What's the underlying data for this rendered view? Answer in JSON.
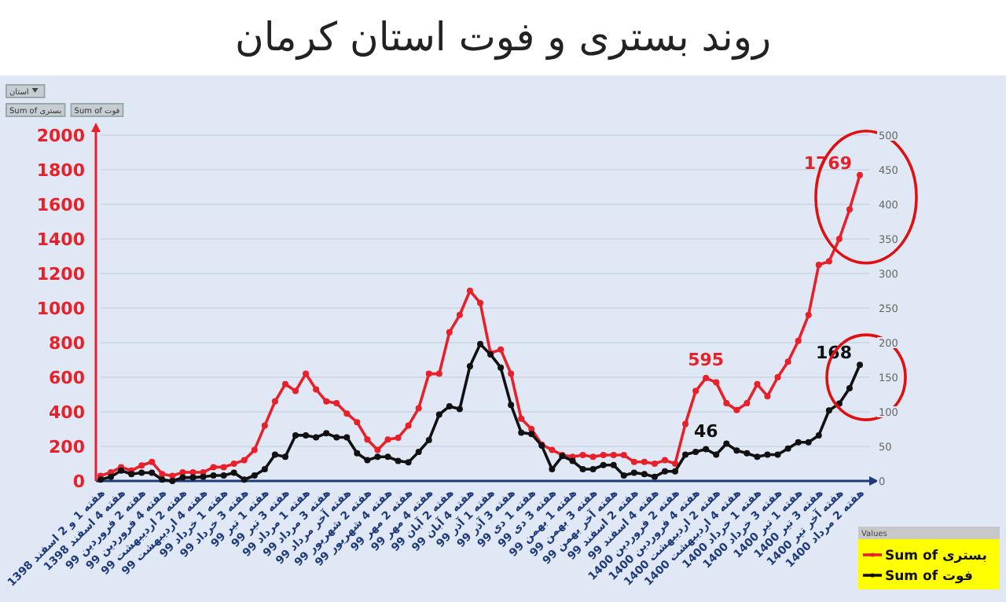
{
  "chart_data": {
    "type": "line",
    "title": "روند بستری و فوت استان کرمان",
    "categories": [
      "هفته 1 و 2 اسفند 1398",
      null,
      "هفته 4 اسفند 1398",
      null,
      "هفته 2 فروردین 99",
      null,
      "هفته 4 فروردین 99",
      null,
      "هفته 2 اردیبهشت 99",
      null,
      "هفته 4 اردیبهشت 99",
      null,
      "هفته 1 خرداد 99",
      null,
      "هفته 3 خرداد 99",
      null,
      "هفته 1 تیر 99",
      null,
      "هفته 3 تیر 99",
      null,
      "هفته 1 مرداد 99",
      null,
      "هفته 3 مرداد 99",
      null,
      "هفته آخر مرداد 99",
      null,
      "هفته 2 شهریور 99",
      null,
      "هفته 4 شهریور 99",
      null,
      "هفته 2 مهر 99",
      null,
      "هفته 4 مهر 99",
      null,
      "هفته 2 آبان 99",
      null,
      "هفته 4 آبان 99",
      null,
      "هفته 1 آذر 99",
      null,
      "هفته 3 آذر 99",
      null,
      "هفته 1 دی 99",
      null,
      "هفته 3 دی 99",
      null,
      "هفته 1 بهمن 99",
      null,
      "هفته 3 بهمن 99",
      null,
      "هفته آخر بهمن 99",
      null,
      "هفته 2 اسفند 99",
      null,
      "هفته 4 اسفند 99",
      null,
      "هفته 2 فروردین 1400",
      null,
      "هفته 4 فروردین 1400",
      null,
      "هفته 2 اردیبهشت 1400",
      null,
      "هفته 4 اردیبهشت 1400",
      null,
      "هفته 1 خرداد 1400",
      null,
      "هفته 3 خرداد 1400",
      null,
      "هفته 1 تیر 1400",
      null,
      "هفته 3 تیر 1400",
      null,
      "هفته آخر تیر 1400",
      null,
      "هفته 2 مرداد 1400"
    ],
    "series": [
      {
        "name": "Sum of بستری",
        "color": "#e8202a",
        "axis": "y",
        "values": [
          30,
          50,
          80,
          60,
          90,
          110,
          40,
          30,
          50,
          50,
          50,
          80,
          80,
          100,
          120,
          180,
          320,
          460,
          560,
          520,
          620,
          530,
          460,
          450,
          390,
          340,
          240,
          180,
          240,
          250,
          320,
          420,
          620,
          620,
          860,
          960,
          1100,
          1030,
          740,
          760,
          620,
          360,
          300,
          210,
          180,
          150,
          140,
          150,
          140,
          150,
          150,
          150,
          110,
          110,
          100,
          120,
          100,
          330,
          520,
          595,
          570,
          450,
          410,
          450,
          560,
          490,
          600,
          690,
          810,
          960,
          1250,
          1270,
          1400,
          1570,
          1769
        ],
        "value_labels": [
          null,
          null,
          null,
          null,
          null,
          null,
          null,
          null,
          null,
          null,
          null,
          null,
          null,
          null,
          null,
          null,
          null,
          null,
          null,
          null,
          null,
          null,
          null,
          null,
          null,
          null,
          null,
          null,
          null,
          null,
          null,
          null,
          null,
          null,
          null,
          null,
          null,
          null,
          null,
          null,
          null,
          null,
          null,
          null,
          null,
          null,
          null,
          null,
          null,
          null,
          null,
          null,
          null,
          null,
          null,
          null,
          null,
          null,
          null,
          "595",
          null,
          null,
          null,
          null,
          null,
          null,
          null,
          null,
          null,
          null,
          null,
          null,
          null,
          null,
          "1769"
        ]
      },
      {
        "name": "Sum of فوت",
        "color": "#111111",
        "axis": "y2",
        "values": [
          2,
          6,
          15,
          10,
          12,
          12,
          2,
          0,
          5,
          5,
          6,
          8,
          8,
          12,
          2,
          8,
          17,
          38,
          35,
          66,
          66,
          63,
          69,
          63,
          63,
          40,
          30,
          35,
          35,
          29,
          27,
          42,
          59,
          96,
          108,
          104,
          166,
          198,
          183,
          164,
          110,
          70,
          68,
          51,
          17,
          36,
          29,
          17,
          17,
          23,
          23,
          8,
          12,
          10,
          6,
          14,
          14,
          38,
          42,
          46,
          38,
          54,
          44,
          40,
          35,
          38,
          38,
          47,
          56,
          56,
          66,
          102,
          112,
          134,
          168
        ],
        "value_labels": [
          null,
          null,
          null,
          null,
          null,
          null,
          null,
          null,
          null,
          null,
          null,
          null,
          null,
          null,
          null,
          null,
          null,
          null,
          null,
          null,
          null,
          null,
          null,
          null,
          null,
          null,
          null,
          null,
          null,
          null,
          null,
          null,
          null,
          null,
          null,
          null,
          null,
          null,
          null,
          null,
          null,
          null,
          null,
          null,
          null,
          null,
          null,
          null,
          null,
          null,
          null,
          null,
          null,
          null,
          null,
          null,
          null,
          null,
          null,
          "46",
          null,
          null,
          null,
          null,
          null,
          null,
          null,
          null,
          null,
          null,
          null,
          null,
          null,
          null,
          "168"
        ]
      }
    ],
    "ylim": [
      0,
      2000
    ],
    "yticks": [
      0,
      200,
      400,
      600,
      800,
      1000,
      1200,
      1400,
      1600,
      1800,
      2000
    ],
    "y2lim": [
      0,
      500
    ],
    "y2ticks": [
      0,
      50,
      100,
      150,
      200,
      250,
      300,
      350,
      400,
      450,
      500
    ],
    "grid": "y",
    "marker": "circle",
    "line_style": "solid",
    "legend": "bottom right",
    "legend_title": "Values",
    "annotations": [
      "استان",
      "Sum of بستری",
      "Sum of فوت"
    ]
  }
}
